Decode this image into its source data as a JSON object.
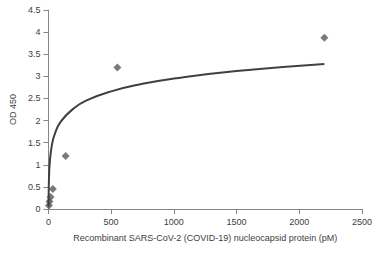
{
  "chart_data": {
    "type": "scatter",
    "x_label": "Recombinant SARS-CoV-2 (COVID-19) nucleocapsid protein (pM)",
    "y_label": "OD 450",
    "xlim": [
      0,
      2500
    ],
    "xticks": [
      0,
      500,
      1000,
      1500,
      2000,
      2500
    ],
    "ylim": [
      0,
      4.5
    ],
    "yticks": [
      0,
      0.5,
      1,
      1.5,
      2,
      2.5,
      3,
      3.5,
      4,
      4.5
    ],
    "grid": false,
    "series": [
      {
        "type": "scatter",
        "marker": "diamond",
        "color": "#595959",
        "x": [
          4.4,
          8.8,
          17.5,
          35,
          137,
          550,
          2200
        ],
        "values": [
          0.08,
          0.17,
          0.27,
          0.45,
          1.2,
          3.2,
          3.87
        ]
      },
      {
        "type": "line",
        "line_style": "solid",
        "color": "#404040",
        "x": [
          1,
          2,
          5,
          10,
          25,
          50,
          100,
          200,
          300,
          500,
          750,
          1000,
          1500,
          2200
        ],
        "values": [
          0.05,
          0.34,
          0.73,
          1.02,
          1.4,
          1.69,
          1.98,
          2.27,
          2.45,
          2.66,
          2.83,
          2.95,
          3.12,
          3.28
        ]
      }
    ]
  }
}
